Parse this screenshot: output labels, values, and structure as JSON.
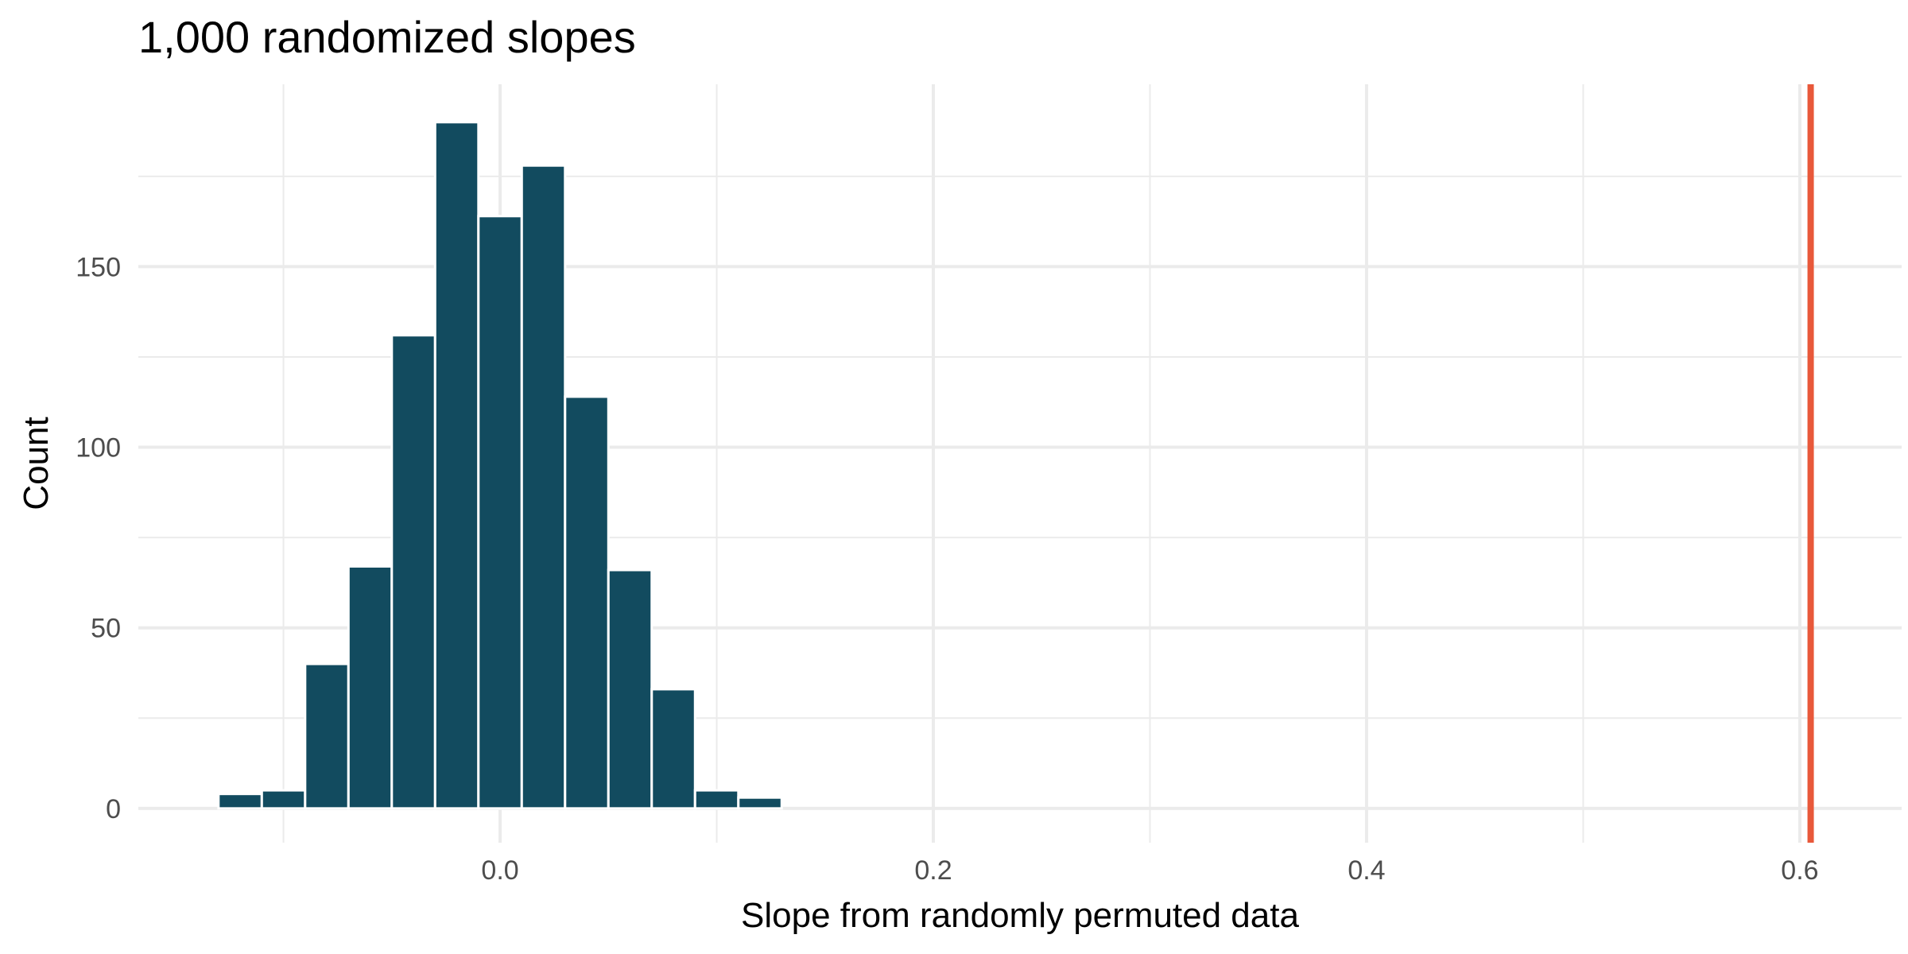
{
  "chart_data": {
    "type": "bar",
    "title": "1,000 randomized slopes",
    "xlabel": "Slope from randomly permuted data",
    "ylabel": "Count",
    "bin_width": 0.02,
    "bins": [
      {
        "start": -0.13,
        "end": -0.11,
        "count": 4
      },
      {
        "start": -0.11,
        "end": -0.09,
        "count": 5
      },
      {
        "start": -0.09,
        "end": -0.07,
        "count": 40
      },
      {
        "start": -0.07,
        "end": -0.05,
        "count": 67
      },
      {
        "start": -0.05,
        "end": -0.03,
        "count": 131
      },
      {
        "start": -0.03,
        "end": -0.01,
        "count": 190
      },
      {
        "start": -0.01,
        "end": 0.01,
        "count": 164
      },
      {
        "start": 0.01,
        "end": 0.03,
        "count": 178
      },
      {
        "start": 0.03,
        "end": 0.05,
        "count": 114
      },
      {
        "start": 0.05,
        "end": 0.07,
        "count": 66
      },
      {
        "start": 0.07,
        "end": 0.09,
        "count": 33
      },
      {
        "start": 0.09,
        "end": 0.11,
        "count": 5
      },
      {
        "start": 0.11,
        "end": 0.13,
        "count": 3
      }
    ],
    "reference_line": {
      "x": 0.605,
      "color": "#e8583a"
    },
    "xlim": [
      -0.167,
      0.647
    ],
    "ylim": [
      -9.5,
      200.5
    ],
    "x_ticks": [
      0.0,
      0.2,
      0.4,
      0.6
    ],
    "x_tick_labels": [
      "0.0",
      "0.2",
      "0.4",
      "0.6"
    ],
    "y_ticks": [
      0,
      50,
      100,
      150
    ],
    "y_tick_labels": [
      "0",
      "50",
      "100",
      "150"
    ],
    "x_minor_ticks": [
      -0.1,
      0.1,
      0.3,
      0.5
    ],
    "y_minor_ticks": [
      25,
      75,
      125,
      175
    ],
    "grid": true,
    "bar_color": "#124b5f",
    "bar_outline": "#ffffff",
    "gridline_color": "#ebebeb"
  }
}
